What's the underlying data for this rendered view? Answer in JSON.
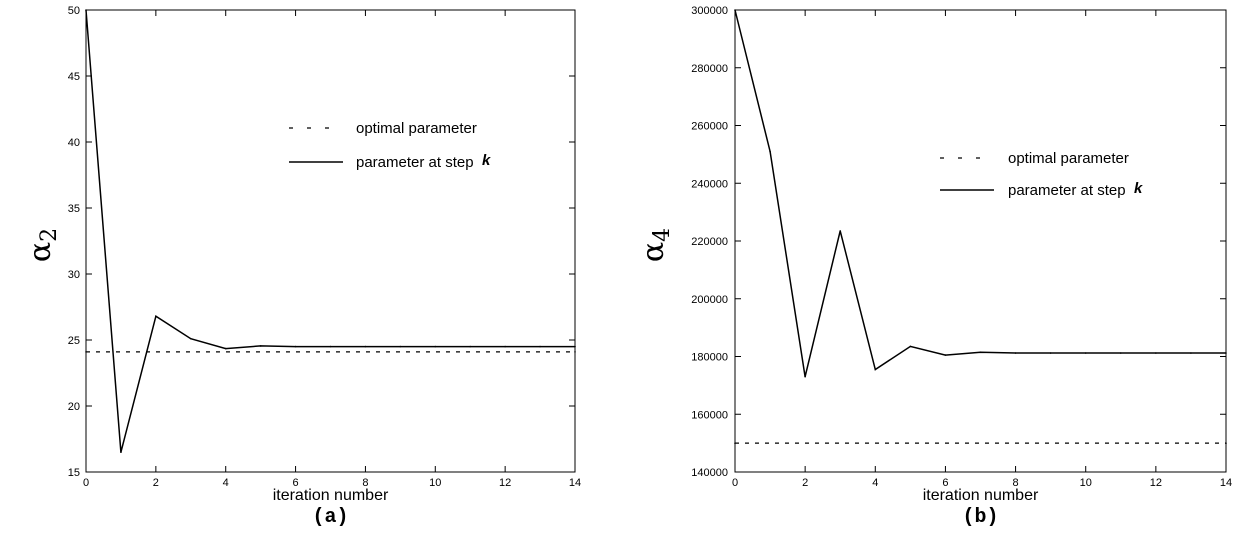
{
  "chart_data": [
    {
      "type": "line",
      "caption": "(a)",
      "xlabel": "iteration number",
      "ylabel": "α",
      "ylabel_sub": "2",
      "xlim": [
        0,
        14
      ],
      "ylim": [
        15,
        50
      ],
      "xticks": [
        0,
        2,
        4,
        6,
        8,
        10,
        12,
        14
      ],
      "yticks": [
        15,
        20,
        25,
        30,
        35,
        40,
        45,
        50
      ],
      "legend_placement": "upper-right",
      "series": [
        {
          "name": "optimal parameter",
          "style": "dotted",
          "x": [
            0,
            14
          ],
          "y": [
            24.1,
            24.1
          ]
        },
        {
          "name": "parameter at step ",
          "name_suffix": "k",
          "style": "solid",
          "x": [
            0,
            1,
            2,
            3,
            4,
            5,
            6,
            7,
            8,
            9,
            10,
            11,
            12,
            13,
            14
          ],
          "y": [
            50,
            16.5,
            26.8,
            25.1,
            24.35,
            24.55,
            24.5,
            24.5,
            24.5,
            24.5,
            24.5,
            24.5,
            24.5,
            24.5,
            24.5
          ]
        }
      ]
    },
    {
      "type": "line",
      "caption": "(b)",
      "xlabel": "iteration number",
      "ylabel": "α",
      "ylabel_sub": "4",
      "xlim": [
        0,
        14
      ],
      "ylim": [
        140000,
        300000
      ],
      "xticks": [
        0,
        2,
        4,
        6,
        8,
        10,
        12,
        14
      ],
      "yticks": [
        140000,
        160000,
        180000,
        200000,
        220000,
        240000,
        260000,
        280000,
        300000
      ],
      "legend_placement": "upper-right",
      "series": [
        {
          "name": "optimal parameter",
          "style": "dotted",
          "x": [
            0,
            14
          ],
          "y": [
            150000,
            150000
          ]
        },
        {
          "name": "parameter at step ",
          "name_suffix": "k",
          "style": "solid",
          "x": [
            0,
            1,
            2,
            3,
            4,
            5,
            6,
            7,
            8,
            9,
            10,
            11,
            12,
            13,
            14
          ],
          "y": [
            300000,
            251000,
            173000,
            223500,
            175500,
            183500,
            180500,
            181500,
            181200,
            181200,
            181200,
            181200,
            181200,
            181200,
            181200
          ]
        }
      ]
    }
  ]
}
